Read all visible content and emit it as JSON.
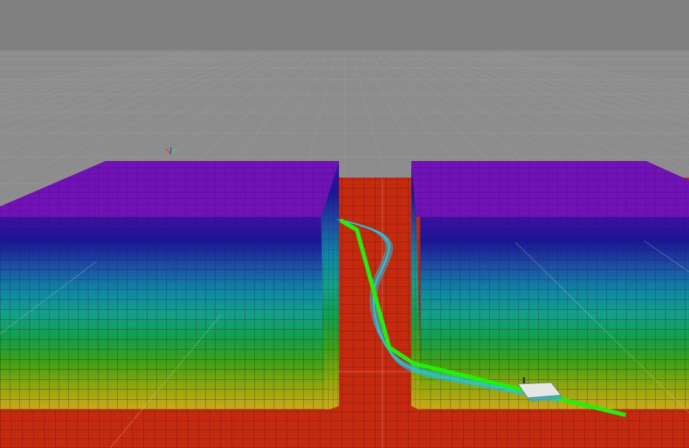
{
  "viewport": {
    "sky_color": "#808080",
    "horizon_color": "#8d8d8d",
    "ground_grid_color": "#b0b0b0"
  },
  "map": {
    "floor_color": "#c52a0e",
    "floor_line_color": "#5a1a10"
  },
  "walls": {
    "top_color": "#7012b5",
    "grid_line_color": "#1e1e2a",
    "height_gradient": [
      "#d0a81a",
      "#8fa80a",
      "#3fa014",
      "#12a04a",
      "#13a088",
      "#0f86a6",
      "#1d4ca4",
      "#1a1598",
      "#3f0fa4"
    ]
  },
  "planner": {
    "global_plan_color": "#1ef20a",
    "local_trajectories_color": "#1ec8e6"
  },
  "robot": {
    "body_color": "#e6e6e6"
  },
  "axes_marker": {
    "x_color": "#ff2020",
    "y_color": "#20ff20",
    "z_color": "#2040ff"
  }
}
